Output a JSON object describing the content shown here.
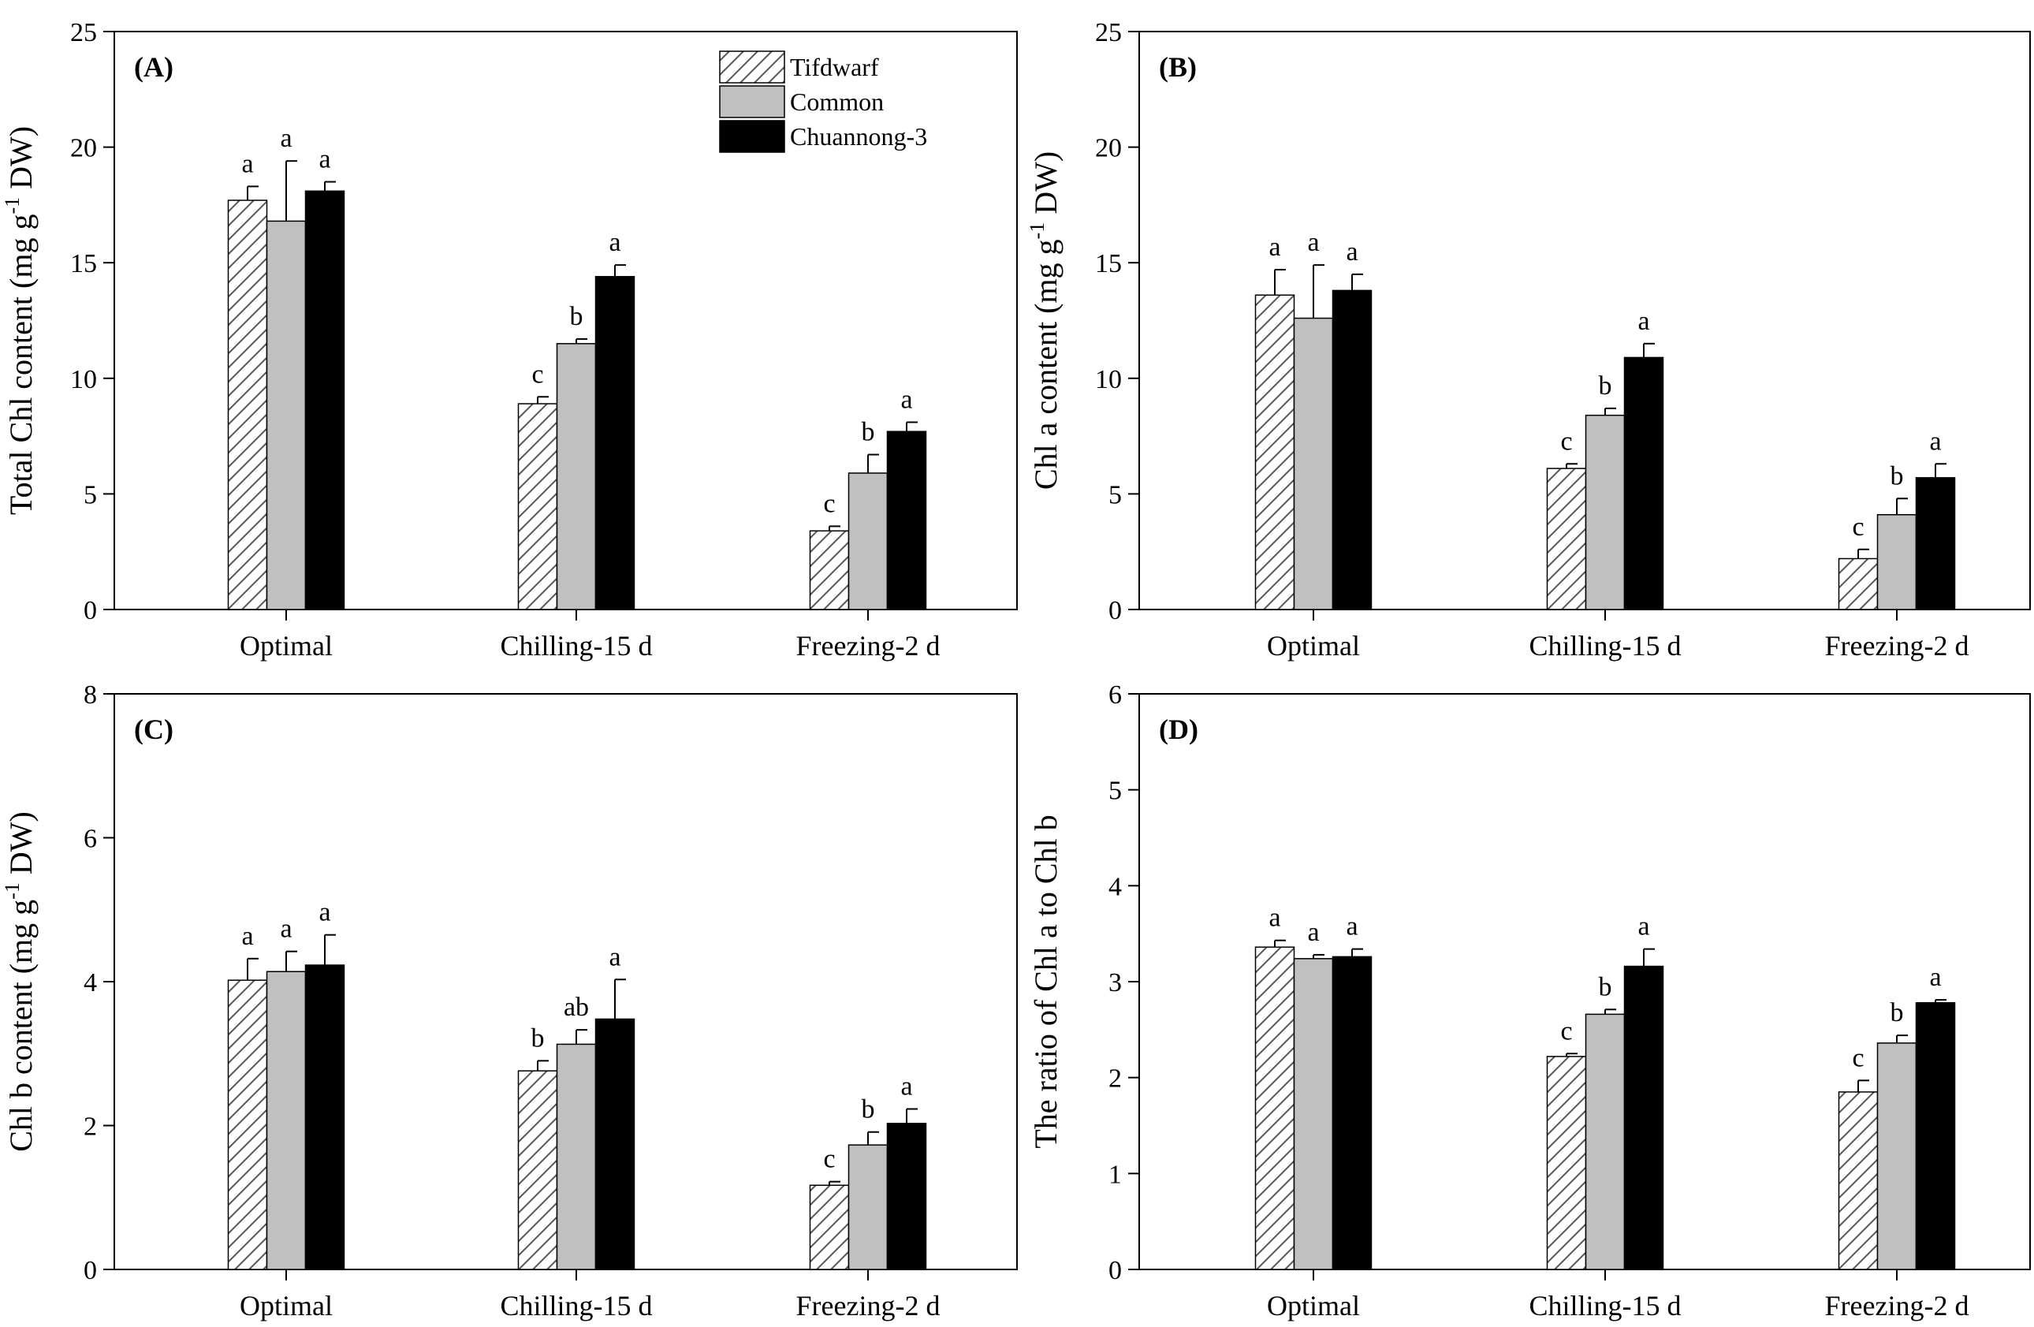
{
  "figure": {
    "legend": {
      "items": [
        {
          "name": "Tifdwarf",
          "style": "hatch"
        },
        {
          "name": "Common",
          "style": "gray"
        },
        {
          "name": "Chuannong-3",
          "style": "black"
        }
      ]
    },
    "colors": {
      "hatch_stroke": "#555555",
      "gray": "#c0c0c0",
      "black": "#000000",
      "axis": "#000000"
    }
  },
  "chart_data": [
    {
      "type": "bar",
      "panel_label": "(A)",
      "ylabel": "Total Chl content (mg g^-1 DW)",
      "ylabel_main": "Total Chl content (mg g",
      "ylabel_sup": "-1",
      "ylabel_end": " DW)",
      "categories": [
        "Optimal",
        "Chilling-15 d",
        "Freezing-2 d"
      ],
      "ylim": [
        0,
        25
      ],
      "yticks": [
        0,
        5,
        10,
        15,
        20,
        25
      ],
      "ytick_labels": [
        "0",
        "5",
        "10",
        "15",
        "20",
        "25"
      ],
      "series": [
        {
          "name": "Tifdwarf",
          "values": [
            17.7,
            8.9,
            3.4
          ],
          "errors": [
            0.6,
            0.3,
            0.2
          ],
          "letters": [
            "a",
            "c",
            "c"
          ]
        },
        {
          "name": "Common",
          "values": [
            16.8,
            11.5,
            5.9
          ],
          "errors": [
            2.6,
            0.2,
            0.8
          ],
          "letters": [
            "a",
            "b",
            "b"
          ]
        },
        {
          "name": "Chuannong-3",
          "values": [
            18.1,
            14.4,
            7.7
          ],
          "errors": [
            0.4,
            0.5,
            0.4
          ],
          "letters": [
            "a",
            "a",
            "a"
          ]
        }
      ],
      "legend": true
    },
    {
      "type": "bar",
      "panel_label": "(B)",
      "ylabel": "Chl a content (mg g^-1 DW)",
      "ylabel_main": "Chl a content (mg g",
      "ylabel_sup": "-1",
      "ylabel_end": " DW)",
      "categories": [
        "Optimal",
        "Chilling-15 d",
        "Freezing-2 d"
      ],
      "ylim": [
        0,
        25
      ],
      "yticks": [
        0,
        5,
        10,
        15,
        20,
        25
      ],
      "ytick_labels": [
        "0",
        "5",
        "10",
        "15",
        "20",
        "25"
      ],
      "series": [
        {
          "name": "Tifdwarf",
          "values": [
            13.6,
            6.1,
            2.2
          ],
          "errors": [
            1.1,
            0.2,
            0.4
          ],
          "letters": [
            "a",
            "c",
            "c"
          ]
        },
        {
          "name": "Common",
          "values": [
            12.6,
            8.4,
            4.1
          ],
          "errors": [
            2.3,
            0.3,
            0.7
          ],
          "letters": [
            "a",
            "b",
            "b"
          ]
        },
        {
          "name": "Chuannong-3",
          "values": [
            13.8,
            10.9,
            5.7
          ],
          "errors": [
            0.7,
            0.6,
            0.6
          ],
          "letters": [
            "a",
            "a",
            "a"
          ]
        }
      ],
      "legend": false
    },
    {
      "type": "bar",
      "panel_label": "(C)",
      "ylabel": "Chl b content (mg g^-1 DW)",
      "ylabel_main": "Chl b content (mg g",
      "ylabel_sup": "-1",
      "ylabel_end": " DW)",
      "categories": [
        "Optimal",
        "Chilling-15 d",
        "Freezing-2 d"
      ],
      "ylim": [
        0,
        8
      ],
      "yticks": [
        0,
        2,
        4,
        6,
        8
      ],
      "ytick_labels": [
        "0",
        "2",
        "4",
        "6",
        "8"
      ],
      "series": [
        {
          "name": "Tifdwarf",
          "values": [
            4.02,
            2.76,
            1.17
          ],
          "errors": [
            0.3,
            0.14,
            0.05
          ],
          "letters": [
            "a",
            "b",
            "c"
          ]
        },
        {
          "name": "Common",
          "values": [
            4.14,
            3.13,
            1.73
          ],
          "errors": [
            0.28,
            0.2,
            0.18
          ],
          "letters": [
            "a",
            "ab",
            "b"
          ]
        },
        {
          "name": "Chuannong-3",
          "values": [
            4.23,
            3.48,
            2.03
          ],
          "errors": [
            0.42,
            0.55,
            0.2
          ],
          "letters": [
            "a",
            "a",
            "a"
          ]
        }
      ],
      "legend": false
    },
    {
      "type": "bar",
      "panel_label": "(D)",
      "ylabel": "The ratio of Chl a to Chl b",
      "ylabel_main": "The ratio of Chl a to Chl b",
      "ylabel_sup": "",
      "ylabel_end": "",
      "categories": [
        "Optimal",
        "Chilling-15 d",
        "Freezing-2 d"
      ],
      "ylim": [
        0,
        6
      ],
      "yticks": [
        0,
        1,
        2,
        3,
        4,
        5,
        6
      ],
      "ytick_labels": [
        "0",
        "1",
        "2",
        "3",
        "4",
        "5",
        "6"
      ],
      "series": [
        {
          "name": "Tifdwarf",
          "values": [
            3.36,
            2.22,
            1.85
          ],
          "errors": [
            0.07,
            0.03,
            0.12
          ],
          "letters": [
            "a",
            "c",
            "c"
          ]
        },
        {
          "name": "Common",
          "values": [
            3.24,
            2.66,
            2.36
          ],
          "errors": [
            0.04,
            0.05,
            0.08
          ],
          "letters": [
            "a",
            "b",
            "b"
          ]
        },
        {
          "name": "Chuannong-3",
          "values": [
            3.26,
            3.16,
            2.78
          ],
          "errors": [
            0.08,
            0.18,
            0.03
          ],
          "letters": [
            "a",
            "a",
            "a"
          ]
        }
      ],
      "legend": false
    }
  ]
}
